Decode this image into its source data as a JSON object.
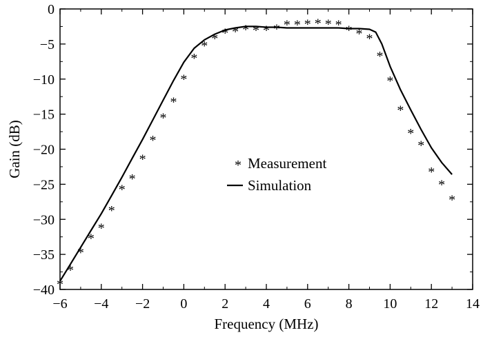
{
  "chart_data": {
    "type": "line",
    "title": "",
    "xlabel": "Frequency (MHz)",
    "ylabel": "Gain (dB)",
    "xlim": [
      -6,
      14
    ],
    "ylim": [
      -40,
      0
    ],
    "xticks": [
      -6,
      -4,
      -2,
      0,
      2,
      4,
      6,
      8,
      10,
      12,
      14
    ],
    "yticks": [
      0,
      -5,
      -10,
      -15,
      -20,
      -25,
      -30,
      -35,
      -40
    ],
    "legend": "center-right",
    "series": [
      {
        "name": "Measurement",
        "style": "markers",
        "marker": "*",
        "x": [
          -6,
          -5.5,
          -5,
          -4.5,
          -4,
          -3.5,
          -3,
          -2.5,
          -2,
          -1.5,
          -1,
          -0.5,
          0,
          0.5,
          1,
          1.5,
          2,
          2.5,
          3,
          3.5,
          4,
          4.5,
          5,
          5.5,
          6,
          6.5,
          7,
          7.5,
          8,
          8.5,
          9,
          9.5,
          10,
          10.5,
          11,
          11.5,
          12,
          12.5,
          13
        ],
        "y": [
          -39,
          -37,
          -34.5,
          -32.5,
          -31,
          -28.5,
          -25.5,
          -24,
          -21.2,
          -18.5,
          -15.3,
          -13,
          -9.8,
          -6.8,
          -5,
          -4,
          -3.2,
          -3,
          -2.7,
          -2.8,
          -2.8,
          -2.6,
          -2,
          -2,
          -1.9,
          -1.8,
          -1.9,
          -2,
          -2.8,
          -3.3,
          -4,
          -6.5,
          -10,
          -14.2,
          -17.5,
          -19.2,
          -23,
          -24.8,
          -27
        ]
      },
      {
        "name": "Simulation",
        "style": "line",
        "color": "#000000",
        "x": [
          -6,
          -5.5,
          -5,
          -4.5,
          -4,
          -3.5,
          -3,
          -2.5,
          -2,
          -1.5,
          -1,
          -0.5,
          0,
          0.5,
          1,
          1.5,
          2,
          2.5,
          3,
          3.5,
          4,
          4.5,
          5,
          5.5,
          6,
          6.5,
          7,
          7.5,
          8,
          8.5,
          9,
          9.3,
          9.6,
          10,
          10.5,
          11,
          11.5,
          12,
          12.5,
          13
        ],
        "y": [
          -38.8,
          -36.4,
          -34,
          -31.6,
          -29.2,
          -26.6,
          -24,
          -21.3,
          -18.6,
          -15.8,
          -13,
          -10.2,
          -7.6,
          -5.6,
          -4.4,
          -3.6,
          -3,
          -2.7,
          -2.5,
          -2.5,
          -2.6,
          -2.6,
          -2.7,
          -2.7,
          -2.7,
          -2.7,
          -2.7,
          -2.7,
          -2.8,
          -2.8,
          -2.9,
          -3.3,
          -5,
          -8.2,
          -11.5,
          -14.4,
          -17.2,
          -19.8,
          -21.9,
          -23.6
        ]
      }
    ]
  }
}
